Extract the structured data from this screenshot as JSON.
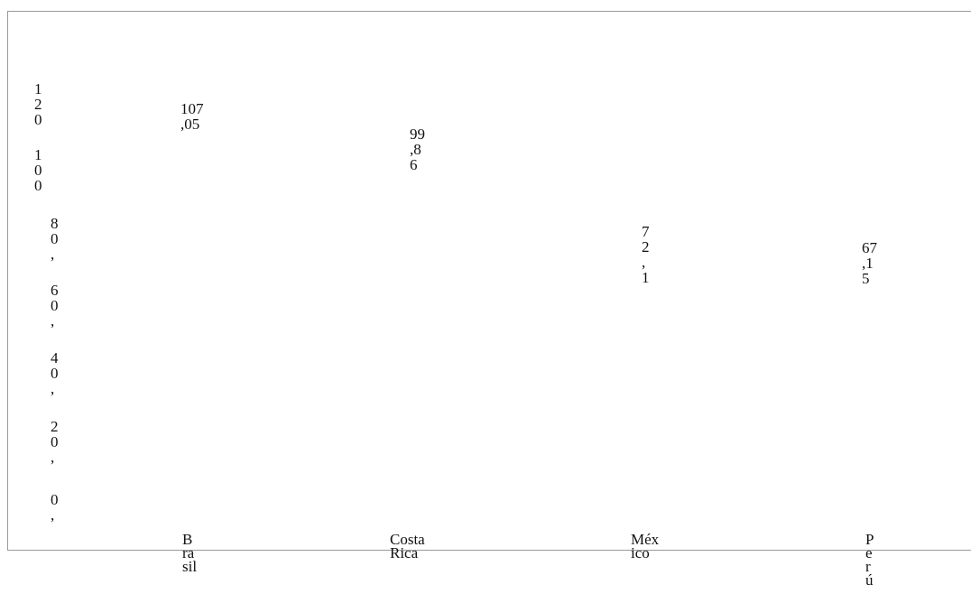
{
  "chart_data": {
    "type": "bar",
    "categories": [
      "Brasil",
      "Costa Rica",
      "México",
      "Perú"
    ],
    "category_display": [
      "B\nra\nsil",
      "Costa\nRica",
      "Méx\nico",
      "P\ne\nr\nú"
    ],
    "values": [
      107.05,
      99.86,
      72.1,
      67.15
    ],
    "value_labels": [
      "107\n,05",
      "99\n,8\n6",
      "7\n2\n,\n1",
      "67\n,1\n5"
    ],
    "y_ticks": [
      "1\n2\n0",
      "1\n0\n0",
      "8\n0\n,",
      "6\n0\n,",
      "4\n0\n,",
      "2\n0\n,",
      "0\n,"
    ],
    "ylim": [
      0,
      120
    ],
    "title": "",
    "xlabel": "",
    "ylabel": "",
    "grid": false,
    "bar_color": "#ffffff"
  }
}
